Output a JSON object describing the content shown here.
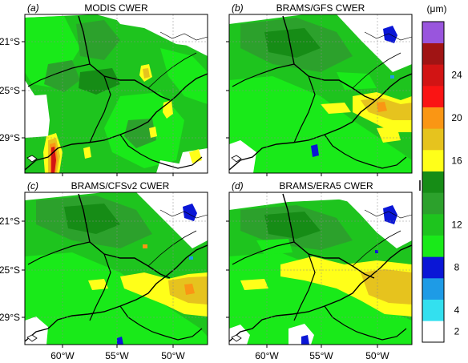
{
  "figure": {
    "unit_label": "(μm)",
    "panels": [
      {
        "letter": "(a)",
        "title": "MODIS CWER"
      },
      {
        "letter": "(b)",
        "title": "BRAMS/GFS CWER"
      },
      {
        "letter": "(c)",
        "title": "BRAMS/CFSv2 CWER"
      },
      {
        "letter": "(d)",
        "title": "BRAMS/ERA5 CWER"
      }
    ],
    "lat_ticks": [
      "21°S",
      "25°S",
      "29°S"
    ],
    "lon_ticks": [
      "60°W",
      "55°W",
      "50°W"
    ],
    "colorbar": {
      "tick_labels": [
        "2",
        "4",
        "8",
        "12",
        "16",
        "20",
        "24"
      ],
      "colors": [
        "#ffffff",
        "#33e0ef",
        "#1e9be6",
        "#0a16d6",
        "#19ea19",
        "#1ec41e",
        "#2ca12c",
        "#168c16",
        "#ffff19",
        "#e6c31e",
        "#fa9614",
        "#fa1414",
        "#d21414",
        "#a01414",
        "#9955dd"
      ]
    }
  }
}
